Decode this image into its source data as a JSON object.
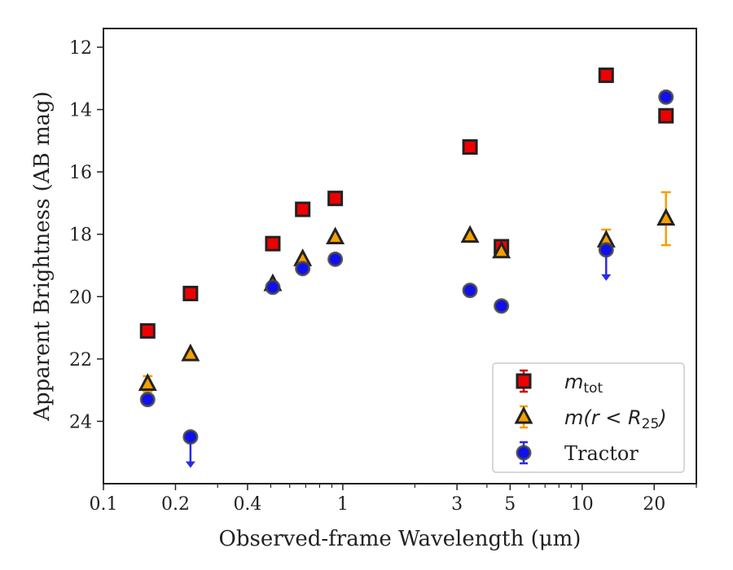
{
  "chart_data": {
    "type": "scatter",
    "xlabel": "Observed-frame Wavelength (μm)",
    "ylabel": "Apparent Brightness (AB mag)",
    "x_scale": "log",
    "y_inverted": true,
    "xlim": [
      0.1,
      30
    ],
    "ylim": [
      26.0,
      11.4
    ],
    "x_ticks": [
      0.1,
      0.2,
      0.4,
      1,
      3,
      5,
      10,
      20
    ],
    "x_tick_labels": [
      "0.1",
      "0.2",
      "0.4",
      "1",
      "3",
      "5",
      "10",
      "20"
    ],
    "y_ticks": [
      12,
      14,
      16,
      18,
      20,
      22,
      24
    ],
    "y_tick_labels": [
      "12",
      "14",
      "16",
      "18",
      "20",
      "22",
      "24"
    ],
    "legend_position": "lower-right",
    "series": [
      {
        "name": "m_tot",
        "label_parts": {
          "italic": "m",
          "sub": "tot"
        },
        "marker": "square",
        "color": "#ee0000",
        "errcolor": "#cc0000",
        "points": [
          {
            "x": 0.153,
            "y": 21.1
          },
          {
            "x": 0.231,
            "y": 19.9
          },
          {
            "x": 0.51,
            "y": 18.3
          },
          {
            "x": 0.68,
            "y": 17.2
          },
          {
            "x": 0.93,
            "y": 16.85
          },
          {
            "x": 3.4,
            "y": 15.2
          },
          {
            "x": 4.6,
            "y": 18.4
          },
          {
            "x": 12.6,
            "y": 12.9
          },
          {
            "x": 22.4,
            "y": 14.2
          }
        ]
      },
      {
        "name": "m(r < R25)",
        "label_parts": {
          "italic": "m(r < R",
          "sub": "25",
          "after": ")"
        },
        "marker": "triangle",
        "color": "#f5a000",
        "errcolor": "#f5a000",
        "points": [
          {
            "x": 0.153,
            "y": 22.8,
            "err": 0.25
          },
          {
            "x": 0.231,
            "y": 21.85
          },
          {
            "x": 0.51,
            "y": 19.6
          },
          {
            "x": 0.68,
            "y": 18.8
          },
          {
            "x": 0.93,
            "y": 18.1
          },
          {
            "x": 3.4,
            "y": 18.05
          },
          {
            "x": 4.6,
            "y": 18.55
          },
          {
            "x": 12.6,
            "y": 18.2,
            "err": 0.35
          },
          {
            "x": 22.4,
            "y": 17.5,
            "err": 0.85
          }
        ]
      },
      {
        "name": "Tractor",
        "marker": "circle",
        "color": "#1010ee",
        "errcolor": "#2a2ae8",
        "points": [
          {
            "x": 0.153,
            "y": 23.3
          },
          {
            "x": 0.231,
            "y": 24.5,
            "upper_limit": true
          },
          {
            "x": 0.51,
            "y": 19.7
          },
          {
            "x": 0.68,
            "y": 19.1
          },
          {
            "x": 0.93,
            "y": 18.8
          },
          {
            "x": 3.4,
            "y": 19.8
          },
          {
            "x": 4.6,
            "y": 20.3
          },
          {
            "x": 12.6,
            "y": 18.5,
            "upper_limit": true
          },
          {
            "x": 22.4,
            "y": 13.6
          }
        ]
      }
    ]
  }
}
